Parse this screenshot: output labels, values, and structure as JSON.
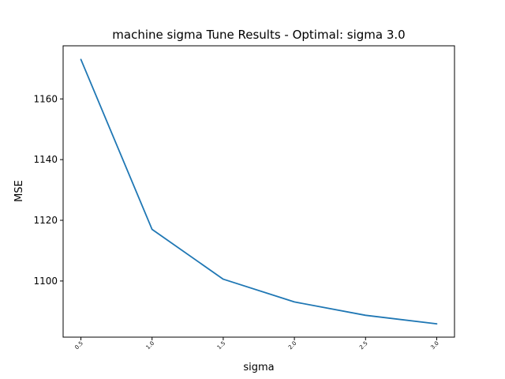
{
  "chart_data": {
    "type": "line",
    "title": "machine sigma Tune Results - Optimal: sigma 3.0",
    "xlabel": "sigma",
    "ylabel": "MSE",
    "x": [
      0.5,
      1.0,
      1.5,
      2.0,
      2.5,
      3.0
    ],
    "x_tick_labels": [
      "0.5",
      "1.0",
      "1.5",
      "2.0",
      "2.5",
      "3.0"
    ],
    "series": [
      {
        "values": [
          1173.0,
          1117.0,
          1100.6,
          1093.1,
          1088.7,
          1085.9
        ],
        "color": "#1f77b4"
      }
    ],
    "xlim": [
      0.375,
      3.125
    ],
    "ylim": [
      1081.5,
      1177.5
    ],
    "y_ticks": [
      1100,
      1120,
      1140,
      1160
    ],
    "grid": false,
    "legend": "none"
  }
}
